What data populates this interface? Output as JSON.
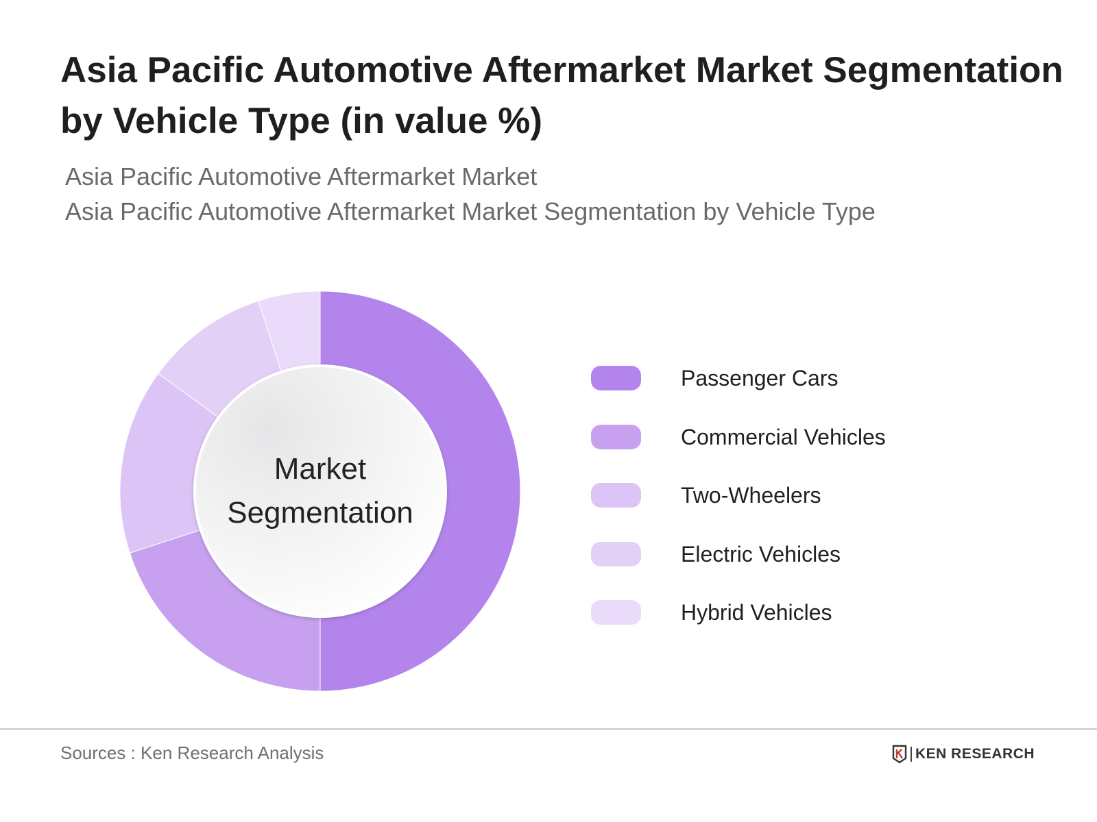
{
  "header": {
    "title": "Asia Pacific Automotive Aftermarket Market Segmentation by Vehicle Type (in value %)",
    "subtitle_line1": "Asia Pacific Automotive Aftermarket Market",
    "subtitle_line2": "Asia Pacific Automotive Aftermarket Market Segmentation by Vehicle Type"
  },
  "chart_data": {
    "type": "pie",
    "variant": "donut",
    "center_label_line1": "Market",
    "center_label_line2": "Segmentation",
    "categories": [
      "Passenger Cars",
      "Commercial Vehicles",
      "Two-Wheelers",
      "Electric Vehicles",
      "Hybrid Vehicles"
    ],
    "values": [
      50,
      20,
      15,
      10,
      5
    ],
    "unit": "%",
    "colors": [
      "#b385ec",
      "#c7a1ef",
      "#dcc4f6",
      "#e3d0f7",
      "#e9dbf9"
    ],
    "legend_position": "right"
  },
  "footer": {
    "sources": "Sources : Ken Research Analysis",
    "brand": "KEN RESEARCH"
  }
}
